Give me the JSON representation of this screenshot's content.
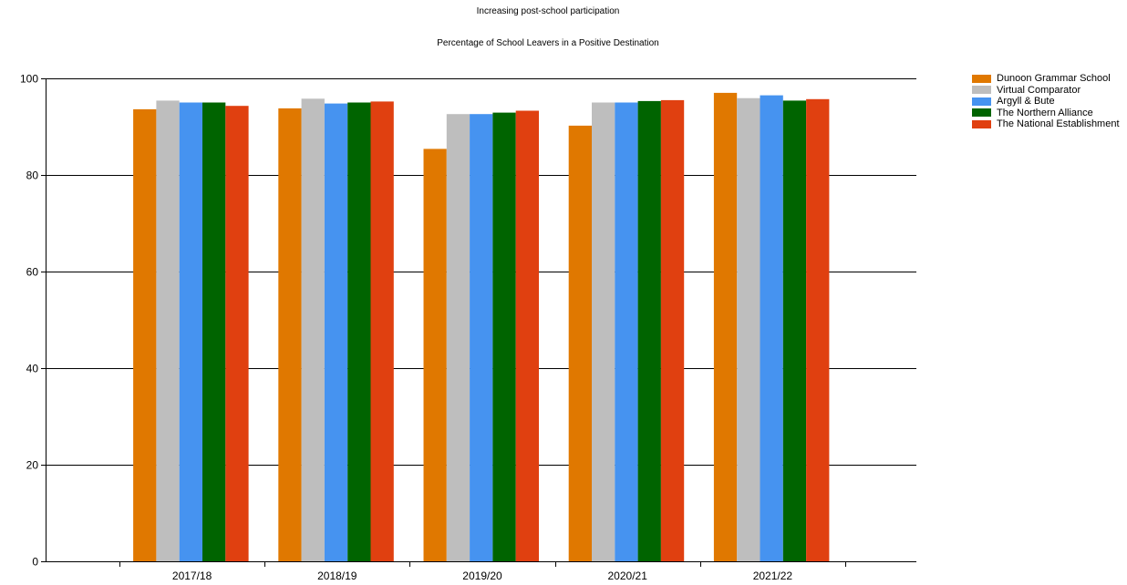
{
  "chart_data": {
    "type": "bar",
    "title": "Increasing post-school participation",
    "subtitle": "Percentage of School Leavers in a Positive Destination",
    "xlabel": "",
    "ylabel": "",
    "categories": [
      "2017/18",
      "2018/19",
      "2019/20",
      "2020/21",
      "2021/22"
    ],
    "ylim": [
      0,
      100
    ],
    "yticks": [
      0,
      20,
      40,
      60,
      80,
      100
    ],
    "grid": "horizontal",
    "legend_position": "top-right",
    "series": [
      {
        "name": "Dunoon Grammar School",
        "color": "#E07800",
        "values": [
          93.6,
          93.8,
          85.4,
          90.2,
          97.0
        ]
      },
      {
        "name": "Virtual Comparator",
        "color": "#BEBEBE",
        "values": [
          95.4,
          95.8,
          92.6,
          95.0,
          95.9
        ]
      },
      {
        "name": "Argyll & Bute",
        "color": "#4693F0",
        "values": [
          95.0,
          94.8,
          92.6,
          95.0,
          96.5
        ]
      },
      {
        "name": "The Northern Alliance",
        "color": "#006400",
        "values": [
          95.0,
          95.0,
          92.9,
          95.3,
          95.4
        ]
      },
      {
        "name": "The National Establishment",
        "color": "#E04010",
        "values": [
          94.3,
          95.2,
          93.3,
          95.5,
          95.7
        ]
      }
    ]
  }
}
